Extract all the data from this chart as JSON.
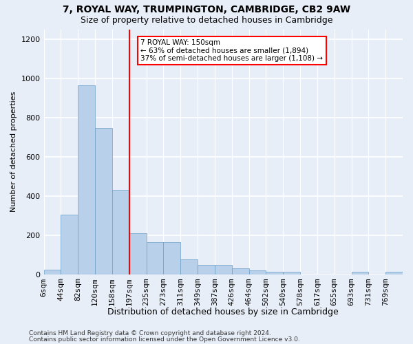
{
  "title1": "7, ROYAL WAY, TRUMPINGTON, CAMBRIDGE, CB2 9AW",
  "title2": "Size of property relative to detached houses in Cambridge",
  "xlabel": "Distribution of detached houses by size in Cambridge",
  "ylabel": "Number of detached properties",
  "bin_labels": [
    "6sqm",
    "44sqm",
    "82sqm",
    "120sqm",
    "158sqm",
    "197sqm",
    "235sqm",
    "273sqm",
    "311sqm",
    "349sqm",
    "387sqm",
    "426sqm",
    "464sqm",
    "502sqm",
    "540sqm",
    "578sqm",
    "617sqm",
    "655sqm",
    "693sqm",
    "731sqm",
    "769sqm"
  ],
  "bar_values": [
    25,
    305,
    965,
    745,
    430,
    210,
    165,
    165,
    75,
    50,
    50,
    30,
    20,
    15,
    15,
    0,
    0,
    0,
    15,
    0,
    15
  ],
  "bar_color": "#b8d0ea",
  "bar_edge_color": "#6a9fc8",
  "vline_bin": 4,
  "vline_color": "red",
  "annotation_text": "7 ROYAL WAY: 150sqm\n← 63% of detached houses are smaller (1,894)\n37% of semi-detached houses are larger (1,108) →",
  "annotation_box_facecolor": "white",
  "annotation_box_edgecolor": "red",
  "ylim": [
    0,
    1250
  ],
  "yticks": [
    0,
    200,
    400,
    600,
    800,
    1000,
    1200
  ],
  "footer1": "Contains HM Land Registry data © Crown copyright and database right 2024.",
  "footer2": "Contains public sector information licensed under the Open Government Licence v3.0.",
  "bg_color": "#e8eef8",
  "grid_color": "#ffffff"
}
